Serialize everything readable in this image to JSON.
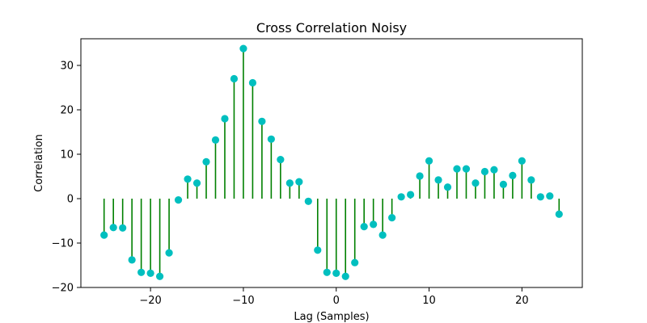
{
  "chart_data": {
    "type": "stem",
    "title": "Cross Correlation Noisy",
    "xlabel": "Lag (Samples)",
    "ylabel": "Correlation",
    "xlim": [
      -27.5,
      26.5
    ],
    "ylim": [
      -20,
      36
    ],
    "xticks": [
      -20,
      -10,
      0,
      10,
      20
    ],
    "xtick_labels": [
      "−20",
      "−10",
      "0",
      "10",
      "20"
    ],
    "yticks": [
      -20,
      -10,
      0,
      10,
      20,
      30
    ],
    "ytick_labels": [
      "−20",
      "−10",
      "0",
      "10",
      "20",
      "30"
    ],
    "grid": false,
    "colors": {
      "stem": "#008000",
      "marker": "#00bfbf"
    },
    "x": [
      -25,
      -24,
      -23,
      -22,
      -21,
      -20,
      -19,
      -18,
      -17,
      -16,
      -15,
      -14,
      -13,
      -12,
      -11,
      -10,
      -9,
      -8,
      -7,
      -6,
      -5,
      -4,
      -3,
      -2,
      -1,
      0,
      1,
      2,
      3,
      4,
      5,
      6,
      7,
      8,
      9,
      10,
      11,
      12,
      13,
      14,
      15,
      16,
      17,
      18,
      19,
      20,
      21,
      22,
      23,
      24
    ],
    "values": [
      -8.2,
      -6.5,
      -6.6,
      -13.8,
      -16.6,
      -16.8,
      -17.5,
      -12.2,
      -0.3,
      4.4,
      3.5,
      8.3,
      13.2,
      18.0,
      27.0,
      33.8,
      26.1,
      17.4,
      13.4,
      8.8,
      3.5,
      3.8,
      -0.6,
      -11.6,
      -16.6,
      -16.8,
      -17.5,
      -14.4,
      -6.3,
      -5.8,
      -8.2,
      -4.3,
      0.4,
      0.9,
      5.1,
      8.5,
      4.2,
      2.6,
      6.7,
      6.7,
      3.5,
      6.1,
      6.5,
      3.2,
      5.2,
      8.5,
      4.2,
      0.4,
      0.6,
      -3.5
    ]
  }
}
